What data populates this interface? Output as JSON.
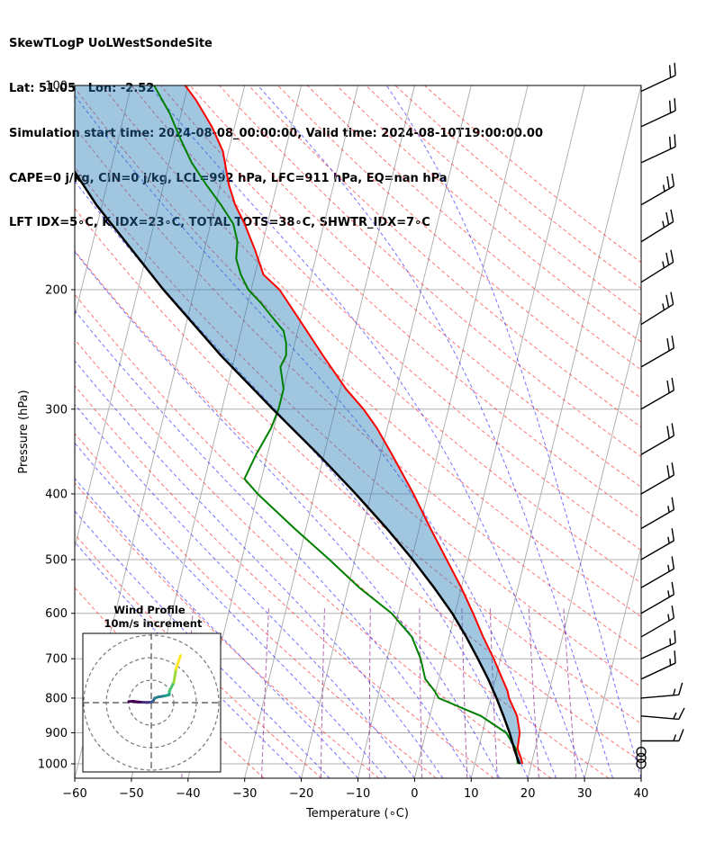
{
  "header": {
    "line1": "SkewTLogP UoLWestSondeSite",
    "line2": "Lat: 51.05   Lon: -2.52",
    "line3": "Simulation start time: 2024-08-08_00:00:00, Valid time: 2024-08-10T19:00:00.00",
    "line4": "CAPE=0 j/kg, CIN=0 j/kg, LCL=992 hPa, LFC=911 hPa, EQ=nan hPa",
    "line5": "LFT IDX=5∘C, K IDX=23∘C, TOTAL TOTS=38∘C, SHWTR_IDX=7∘C"
  },
  "chart_data": {
    "type": "skew-t log-p",
    "xlabel": "Temperature (∘C)",
    "ylabel": "Pressure (hPa)",
    "xlim": [
      -60,
      40
    ],
    "ylim": [
      1050,
      100
    ],
    "y_scale": "log",
    "grid": true,
    "x_ticks": [
      -60,
      -50,
      -40,
      -30,
      -20,
      -10,
      0,
      10,
      20,
      30,
      40
    ],
    "x_tick_labels": [
      "−60",
      "−50",
      "−40",
      "−30",
      "−20",
      "−10",
      "0",
      "10",
      "20",
      "30",
      "40"
    ],
    "y_ticks": [
      1000,
      900,
      800,
      700,
      600,
      500,
      400,
      300,
      200,
      100
    ],
    "y_tick_labels": [
      "1000",
      "900",
      "800",
      "700",
      "600",
      "500",
      "400",
      "300",
      "200",
      "100"
    ],
    "colors": {
      "temperature": "#ff0000",
      "dewpoint": "#008000",
      "parcel": "#000000",
      "cape_fill": "#1f77b4",
      "dry_adiabats": "#ff0000",
      "moist_adiabats": "#0000ff",
      "mixing_ratio": "#800080",
      "isotherms": "#aaaaaa"
    },
    "series": [
      {
        "name": "",
        "role": "temperature",
        "points": [
          [
            1000,
            18.4
          ],
          [
            980,
            17.9
          ],
          [
            950,
            16.9
          ],
          [
            900,
            16.6
          ],
          [
            850,
            15.4
          ],
          [
            800,
            13.2
          ],
          [
            780,
            12.6
          ],
          [
            750,
            11.2
          ],
          [
            700,
            8.8
          ],
          [
            650,
            6.0
          ],
          [
            600,
            3.2
          ],
          [
            550,
            0.0
          ],
          [
            500,
            -3.8
          ],
          [
            450,
            -8.0
          ],
          [
            400,
            -12.5
          ],
          [
            350,
            -18.0
          ],
          [
            320,
            -21.8
          ],
          [
            300,
            -25.0
          ],
          [
            280,
            -29.0
          ],
          [
            250,
            -34.5
          ],
          [
            220,
            -40.5
          ],
          [
            200,
            -45.0
          ],
          [
            190,
            -48.5
          ],
          [
            175,
            -51.0
          ],
          [
            160,
            -54.0
          ],
          [
            150,
            -56.5
          ],
          [
            140,
            -58.5
          ],
          [
            125,
            -61.0
          ],
          [
            115,
            -64.0
          ],
          [
            105,
            -68.0
          ],
          [
            100,
            -70.5
          ]
        ]
      },
      {
        "name": "",
        "role": "dewpoint",
        "points": [
          [
            1000,
            17.6
          ],
          [
            980,
            17.2
          ],
          [
            950,
            16.6
          ],
          [
            900,
            14.2
          ],
          [
            850,
            9.0
          ],
          [
            800,
            0.8
          ],
          [
            780,
            -0.3
          ],
          [
            750,
            -2.4
          ],
          [
            700,
            -4.1
          ],
          [
            650,
            -6.6
          ],
          [
            600,
            -11.2
          ],
          [
            550,
            -18.0
          ],
          [
            500,
            -24.5
          ],
          [
            450,
            -32.0
          ],
          [
            400,
            -40.0
          ],
          [
            380,
            -43.0
          ],
          [
            350,
            -42.0
          ],
          [
            320,
            -40.5
          ],
          [
            300,
            -40.0
          ],
          [
            280,
            -40.0
          ],
          [
            260,
            -41.5
          ],
          [
            250,
            -41.0
          ],
          [
            240,
            -41.5
          ],
          [
            230,
            -42.5
          ],
          [
            220,
            -45.0
          ],
          [
            210,
            -47.5
          ],
          [
            200,
            -50.5
          ],
          [
            190,
            -52.5
          ],
          [
            180,
            -54.0
          ],
          [
            170,
            -54.5
          ],
          [
            160,
            -56.0
          ],
          [
            150,
            -59.0
          ],
          [
            140,
            -62.5
          ],
          [
            130,
            -66.0
          ],
          [
            120,
            -69.0
          ],
          [
            110,
            -72.0
          ],
          [
            100,
            -76.0
          ]
        ]
      },
      {
        "name": "",
        "role": "parcel",
        "points": [
          [
            1000,
            18.0
          ],
          [
            992,
            17.6
          ],
          [
            950,
            16.3
          ],
          [
            900,
            14.8
          ],
          [
            850,
            13.0
          ],
          [
            800,
            11.0
          ],
          [
            750,
            8.7
          ],
          [
            700,
            6.0
          ],
          [
            650,
            3.0
          ],
          [
            600,
            -0.5
          ],
          [
            550,
            -4.8
          ],
          [
            500,
            -9.8
          ],
          [
            450,
            -15.7
          ],
          [
            400,
            -22.7
          ],
          [
            350,
            -31.0
          ],
          [
            300,
            -41.0
          ],
          [
            250,
            -52.5
          ],
          [
            200,
            -65.5
          ],
          [
            150,
            -81.0
          ],
          [
            100,
            -100.0
          ]
        ]
      }
    ],
    "wind_barbs": [
      {
        "p": 1000,
        "speed_kt": 0
      },
      {
        "p": 980,
        "speed_kt": 0
      },
      {
        "p": 960,
        "speed_kt": 0
      },
      {
        "p": 925,
        "speed_kt": 15,
        "dir": 270
      },
      {
        "p": 850,
        "speed_kt": 15,
        "dir": 275
      },
      {
        "p": 800,
        "speed_kt": 15,
        "dir": 265
      },
      {
        "p": 750,
        "speed_kt": 15,
        "dir": 245
      },
      {
        "p": 700,
        "speed_kt": 15,
        "dir": 245
      },
      {
        "p": 650,
        "speed_kt": 15,
        "dir": 240
      },
      {
        "p": 600,
        "speed_kt": 15,
        "dir": 240
      },
      {
        "p": 550,
        "speed_kt": 15,
        "dir": 240
      },
      {
        "p": 500,
        "speed_kt": 15,
        "dir": 240
      },
      {
        "p": 450,
        "speed_kt": 15,
        "dir": 240
      },
      {
        "p": 400,
        "speed_kt": 20,
        "dir": 240
      },
      {
        "p": 350,
        "speed_kt": 20,
        "dir": 240
      },
      {
        "p": 300,
        "speed_kt": 20,
        "dir": 240
      },
      {
        "p": 260,
        "speed_kt": 20,
        "dir": 240
      },
      {
        "p": 225,
        "speed_kt": 25,
        "dir": 238
      },
      {
        "p": 195,
        "speed_kt": 25,
        "dir": 238
      },
      {
        "p": 170,
        "speed_kt": 25,
        "dir": 238
      },
      {
        "p": 150,
        "speed_kt": 25,
        "dir": 240
      },
      {
        "p": 130,
        "speed_kt": 20,
        "dir": 245
      },
      {
        "p": 115,
        "speed_kt": 20,
        "dir": 245
      },
      {
        "p": 102,
        "speed_kt": 20,
        "dir": 245
      }
    ],
    "inset": {
      "title": "Wind Profile",
      "subtitle": "10m/s increment",
      "ring_step_ms": 10,
      "rings": 3,
      "hodograph_uv": [
        [
          -10,
          0.5
        ],
        [
          -8,
          0.6
        ],
        [
          -6,
          0.3
        ],
        [
          -4,
          0.2
        ],
        [
          -2,
          0.1
        ],
        [
          0,
          0.2
        ],
        [
          1,
          1
        ],
        [
          1.5,
          2
        ],
        [
          3,
          2.5
        ],
        [
          6,
          3
        ],
        [
          8,
          3.5
        ],
        [
          8,
          5
        ],
        [
          9,
          7
        ],
        [
          10,
          9
        ],
        [
          10.5,
          12
        ],
        [
          11,
          15
        ],
        [
          12,
          18
        ],
        [
          13,
          21
        ]
      ]
    }
  }
}
